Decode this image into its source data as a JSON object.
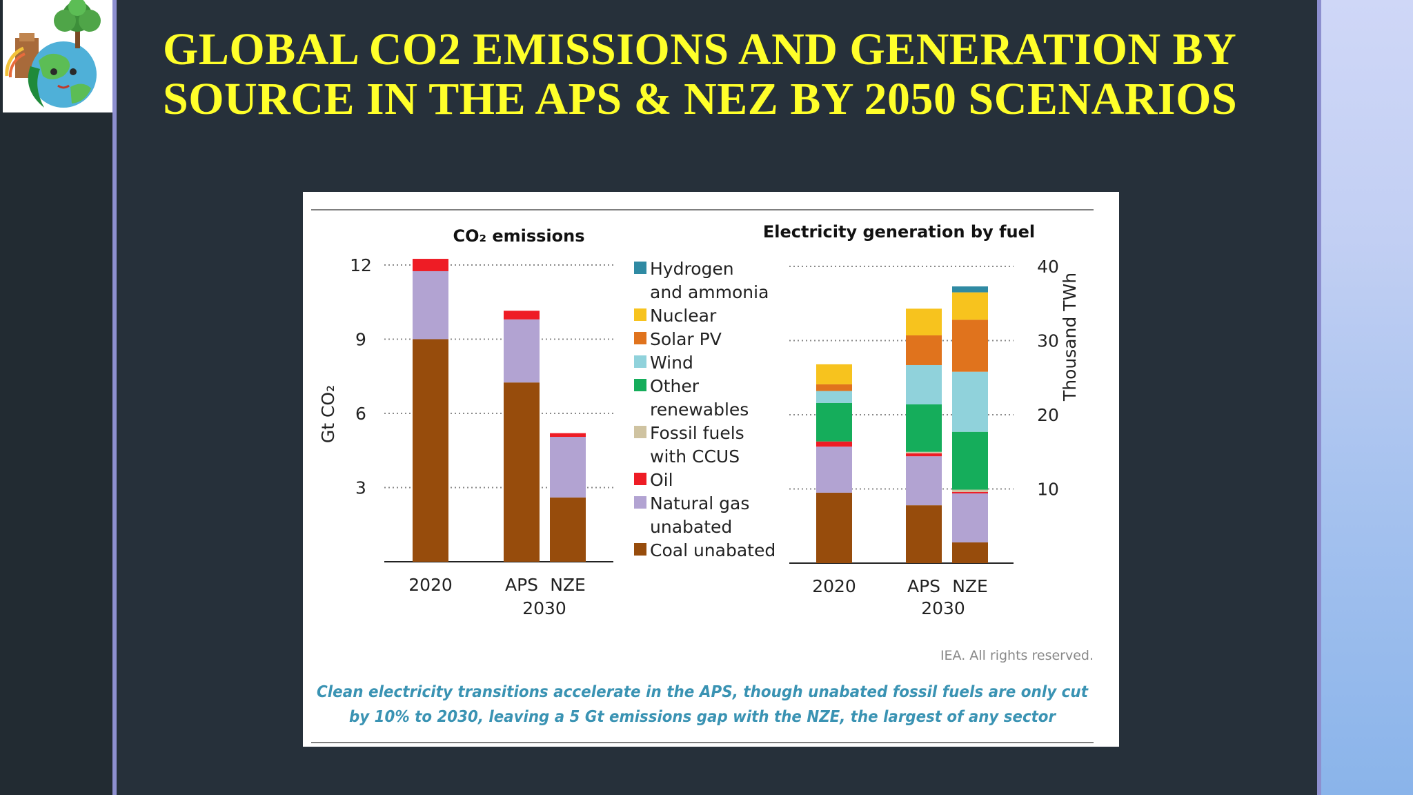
{
  "slide": {
    "title": "GLOBAL CO2 EMISSIONS AND GENERATION BY SOURCE IN THE APS & NEZ BY 2050 SCENARIOS"
  },
  "colors": {
    "hydrogen": "#2f8aa3",
    "nuclear": "#f7c31e",
    "solar": "#e0731d",
    "wind": "#90d2db",
    "other_renewables": "#15ad5b",
    "fossil_ccus": "#cfc3a1",
    "oil": "#ee1c25",
    "natural_gas": "#b2a3d2",
    "coal": "#974c0c",
    "caption": "#3a93b3"
  },
  "figure": {
    "copyright": "IEA. All rights reserved.",
    "caption_line1": "Clean electricity transitions accelerate in the APS, though unabated fossil fuels are only cut",
    "caption_line2": "by 10% to 2030, leaving a 5 Gt emissions gap with the NZE, the largest of any sector",
    "group_label": "2030"
  },
  "legend": [
    {
      "key": "hydrogen",
      "lines": [
        "Hydrogen",
        "and ammonia"
      ]
    },
    {
      "key": "nuclear",
      "lines": [
        "Nuclear"
      ]
    },
    {
      "key": "solar",
      "lines": [
        "Solar PV"
      ]
    },
    {
      "key": "wind",
      "lines": [
        "Wind"
      ]
    },
    {
      "key": "other_renewables",
      "lines": [
        "Other",
        "renewables"
      ]
    },
    {
      "key": "fossil_ccus",
      "lines": [
        "Fossil fuels",
        "with CCUS"
      ]
    },
    {
      "key": "oil",
      "lines": [
        "Oil"
      ]
    },
    {
      "key": "natural_gas",
      "lines": [
        "Natural gas",
        "unabated"
      ]
    },
    {
      "key": "coal",
      "lines": [
        "Coal unabated"
      ]
    }
  ],
  "chart_data": [
    {
      "type": "bar",
      "stacked": true,
      "title": "CO₂ emissions",
      "ylabel": "Gt CO₂",
      "ylim": [
        0,
        12
      ],
      "yticks": [
        3,
        6,
        9,
        12
      ],
      "grid": true,
      "categories": [
        "2020",
        "APS",
        "NZE"
      ],
      "series": [
        {
          "name": "Coal unabated",
          "key": "coal",
          "values": [
            9.0,
            7.25,
            2.6
          ]
        },
        {
          "name": "Natural gas unabated",
          "key": "natural_gas",
          "values": [
            2.75,
            2.55,
            2.45
          ]
        },
        {
          "name": "Oil",
          "key": "oil",
          "values": [
            0.5,
            0.35,
            0.15
          ]
        }
      ]
    },
    {
      "type": "bar",
      "stacked": true,
      "title": "Electricity generation by fuel",
      "ylabel": "Thousand TWh",
      "ylim": [
        0,
        40
      ],
      "yticks": [
        10,
        20,
        30,
        40
      ],
      "grid": true,
      "categories": [
        "2020",
        "APS",
        "NZE"
      ],
      "series": [
        {
          "name": "Coal unabated",
          "key": "coal",
          "values": [
            9.5,
            7.8,
            2.8
          ]
        },
        {
          "name": "Natural gas unabated",
          "key": "natural_gas",
          "values": [
            6.2,
            6.6,
            6.6
          ]
        },
        {
          "name": "Oil",
          "key": "oil",
          "values": [
            0.7,
            0.4,
            0.2
          ]
        },
        {
          "name": "Fossil fuels with CCUS",
          "key": "fossil_ccus",
          "values": [
            0.0,
            0.2,
            0.3
          ]
        },
        {
          "name": "Other renewables",
          "key": "other_renewables",
          "values": [
            5.2,
            6.4,
            7.8
          ]
        },
        {
          "name": "Wind",
          "key": "wind",
          "values": [
            1.6,
            5.3,
            8.1
          ]
        },
        {
          "name": "Solar PV",
          "key": "solar",
          "values": [
            0.9,
            4.0,
            7.0
          ]
        },
        {
          "name": "Nuclear",
          "key": "nuclear",
          "values": [
            2.7,
            3.6,
            3.7
          ]
        },
        {
          "name": "Hydrogen and ammonia",
          "key": "hydrogen",
          "values": [
            0.0,
            0.0,
            0.8
          ]
        }
      ]
    }
  ]
}
